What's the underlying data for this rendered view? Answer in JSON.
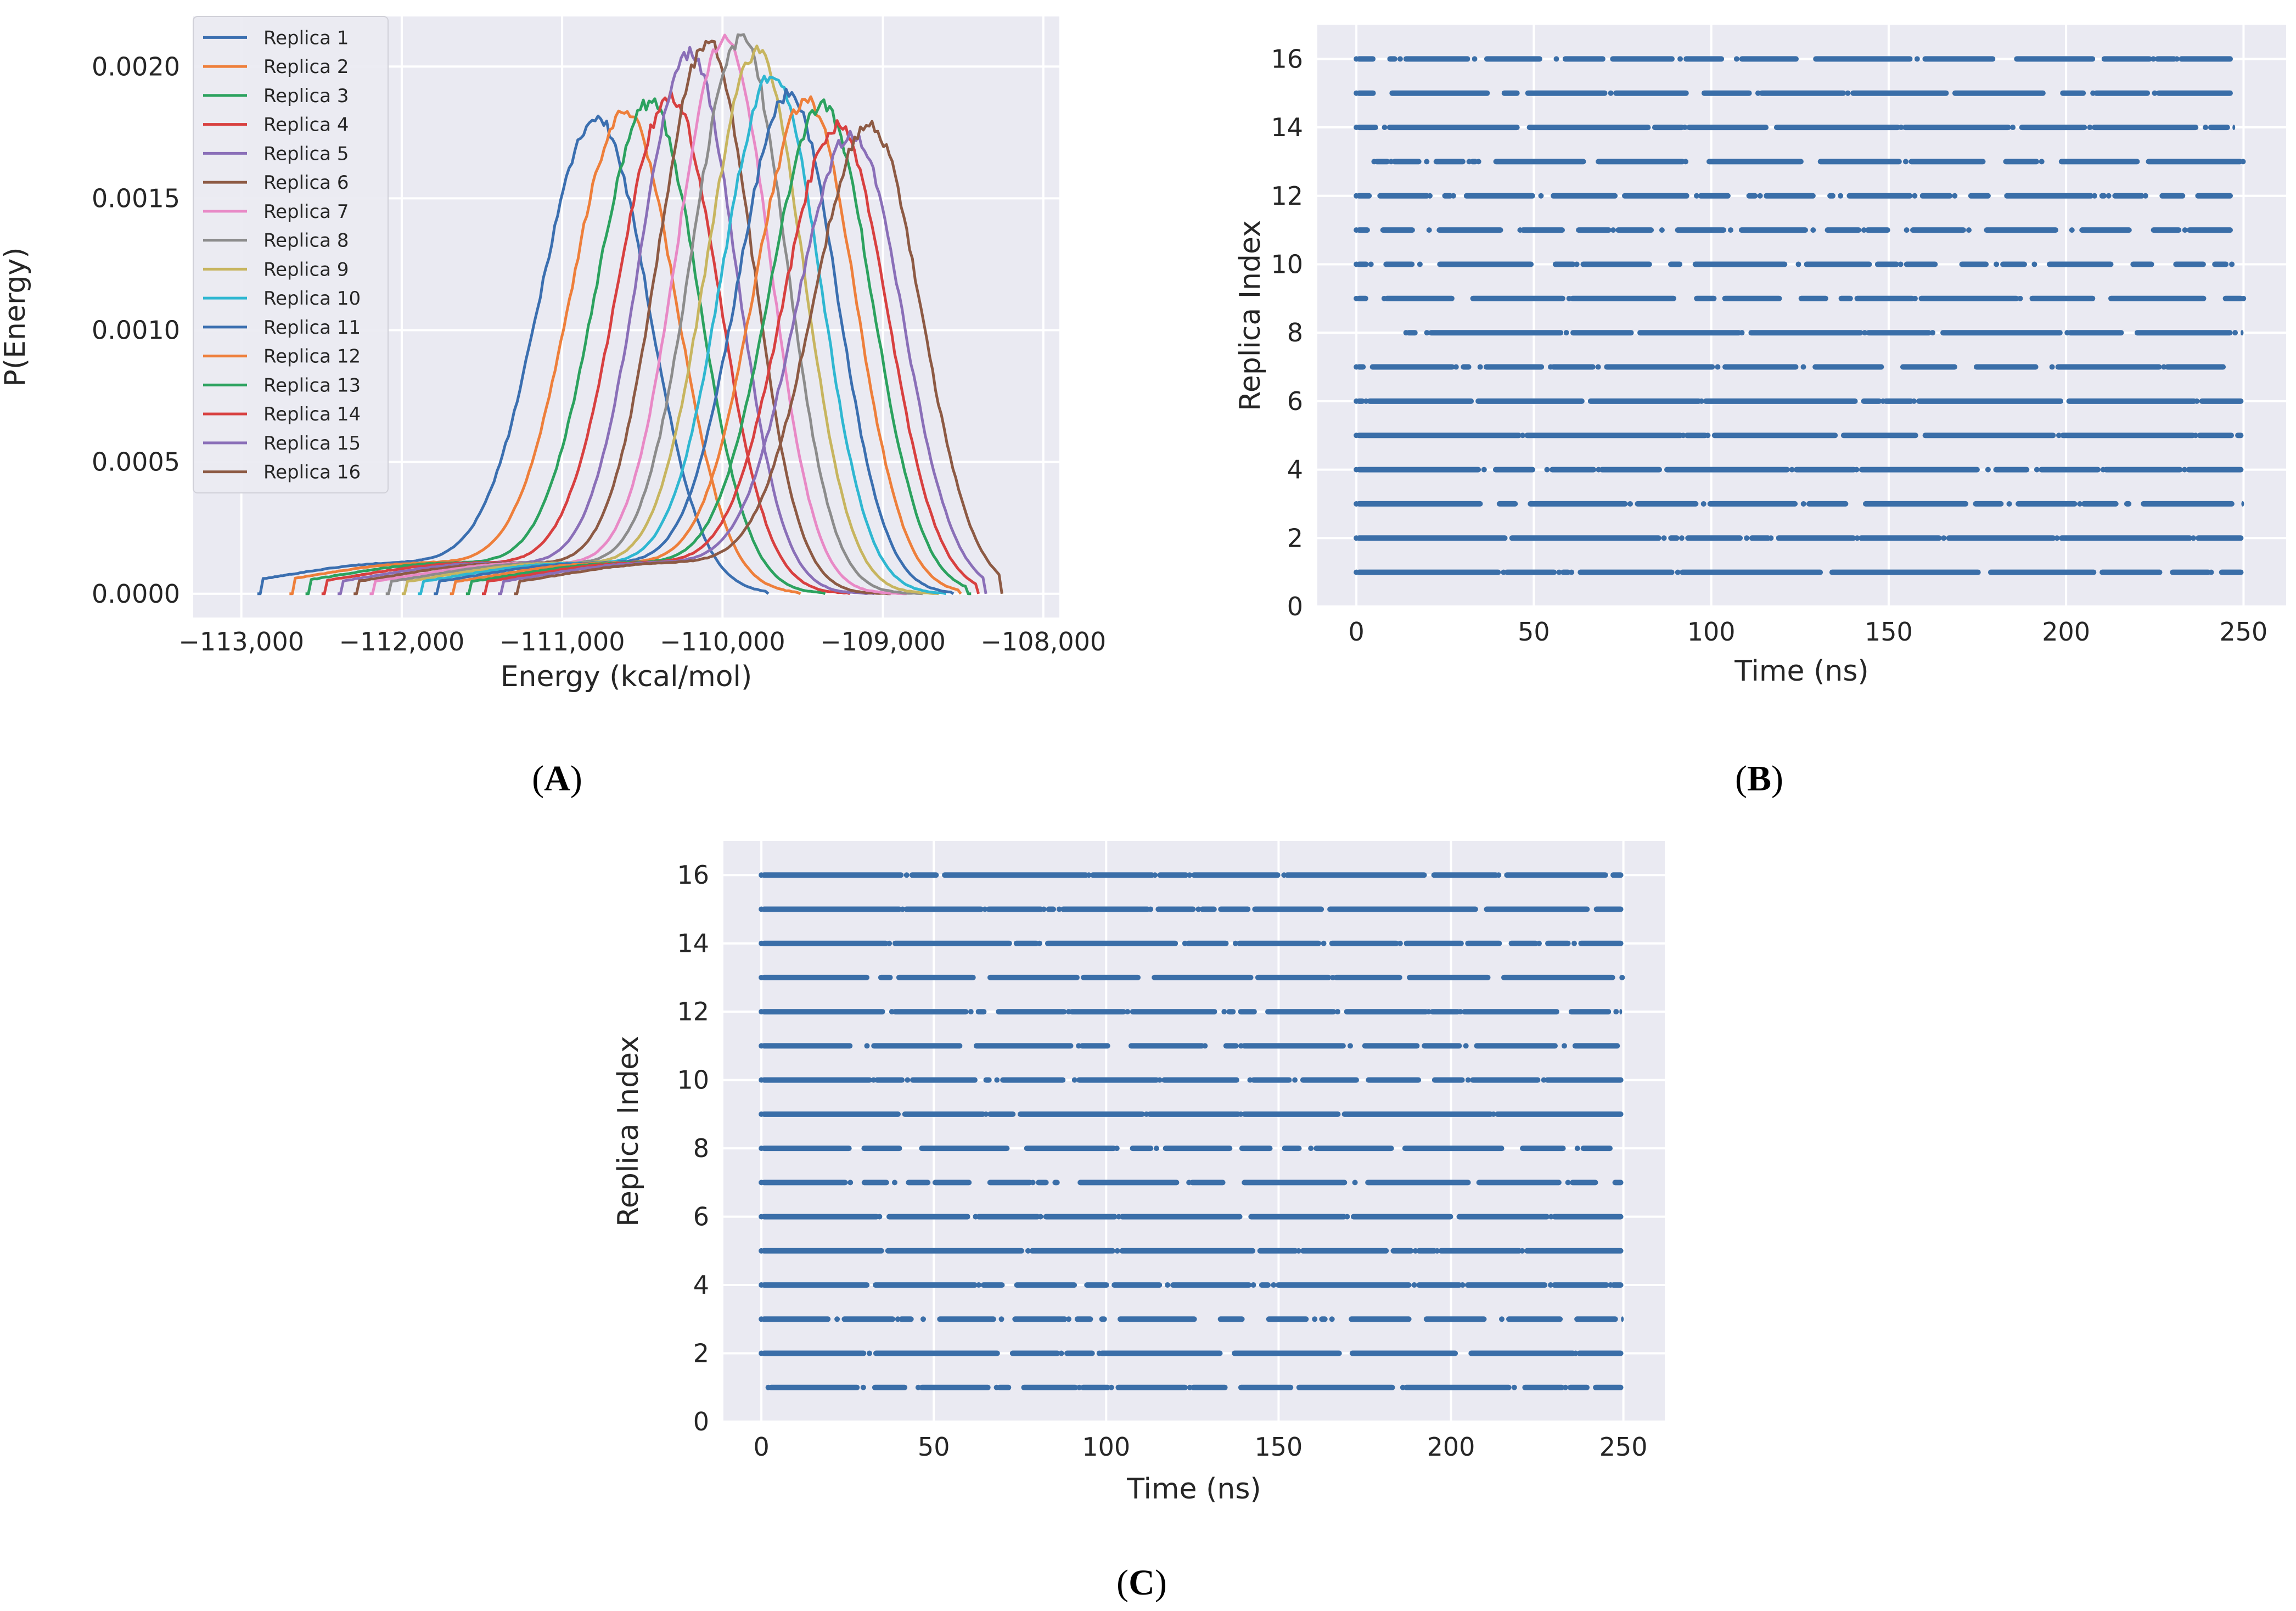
{
  "chart_data": [
    {
      "id": "A",
      "type": "line",
      "panel_label": {
        "open": "(",
        "letter": "A",
        "close": ")"
      },
      "xlabel": "Energy (kcal/mol)",
      "ylabel": "P(Energy)",
      "xlim": [
        -113300,
        -107900
      ],
      "ylim": [
        -9e-05,
        0.00219
      ],
      "xticks": [
        -113000,
        -112000,
        -111000,
        -110000,
        -109000,
        -108000
      ],
      "xtick_labels": [
        "−113,000",
        "−112,000",
        "−111,000",
        "−110,000",
        "−109,000",
        "−108,000"
      ],
      "yticks": [
        0,
        0.0005,
        0.001,
        0.0015,
        0.002
      ],
      "ytick_labels": [
        "0.0000",
        "0.0005",
        "0.0010",
        "0.0015",
        "0.0020"
      ],
      "grid": true,
      "legend_position": "top-left",
      "series": [
        {
          "name": "Replica 1",
          "color": "#3b6fb0",
          "peak_x": -110780,
          "peak_y": 0.00178,
          "sigma": 340,
          "range": [
            -112900,
            -109700
          ]
        },
        {
          "name": "Replica 2",
          "color": "#ee7f3b",
          "peak_x": -110600,
          "peak_y": 0.0018,
          "sigma": 330,
          "range": [
            -112700,
            -109500
          ]
        },
        {
          "name": "Replica 3",
          "color": "#2ca25f",
          "peak_x": -110450,
          "peak_y": 0.00184,
          "sigma": 320,
          "range": [
            -112600,
            -109350
          ]
        },
        {
          "name": "Replica 4",
          "color": "#d84040",
          "peak_x": -110320,
          "peak_y": 0.00186,
          "sigma": 315,
          "range": [
            -112500,
            -109200
          ]
        },
        {
          "name": "Replica 5",
          "color": "#8a6fb8",
          "peak_x": -110200,
          "peak_y": 0.00203,
          "sigma": 300,
          "range": [
            -112400,
            -109050
          ]
        },
        {
          "name": "Replica 6",
          "color": "#8d5a44",
          "peak_x": -110090,
          "peak_y": 0.00207,
          "sigma": 295,
          "range": [
            -112300,
            -108950
          ]
        },
        {
          "name": "Replica 7",
          "color": "#e889c6",
          "peak_x": -109980,
          "peak_y": 0.00209,
          "sigma": 290,
          "range": [
            -112200,
            -108850
          ]
        },
        {
          "name": "Replica 8",
          "color": "#8c8c8c",
          "peak_x": -109880,
          "peak_y": 0.00208,
          "sigma": 295,
          "range": [
            -112100,
            -108750
          ]
        },
        {
          "name": "Replica 9",
          "color": "#c7b55f",
          "peak_x": -109780,
          "peak_y": 0.00203,
          "sigma": 300,
          "range": [
            -112000,
            -108650
          ]
        },
        {
          "name": "Replica 10",
          "color": "#2fb7d1",
          "peak_x": -109680,
          "peak_y": 0.00195,
          "sigma": 305,
          "range": [
            -111900,
            -108600
          ]
        },
        {
          "name": "Replica 11",
          "color": "#3b6fb0",
          "peak_x": -109580,
          "peak_y": 0.00187,
          "sigma": 310,
          "range": [
            -111800,
            -108550
          ]
        },
        {
          "name": "Replica 12",
          "color": "#ee7f3b",
          "peak_x": -109470,
          "peak_y": 0.00185,
          "sigma": 315,
          "range": [
            -111700,
            -108500
          ]
        },
        {
          "name": "Replica 13",
          "color": "#2ca25f",
          "peak_x": -109370,
          "peak_y": 0.00183,
          "sigma": 320,
          "range": [
            -111600,
            -108450
          ]
        },
        {
          "name": "Replica 14",
          "color": "#d84040",
          "peak_x": -109280,
          "peak_y": 0.00175,
          "sigma": 325,
          "range": [
            -111500,
            -108400
          ]
        },
        {
          "name": "Replica 15",
          "color": "#8a6fb8",
          "peak_x": -109190,
          "peak_y": 0.00172,
          "sigma": 330,
          "range": [
            -111400,
            -108350
          ]
        },
        {
          "name": "Replica 16",
          "color": "#8d5a44",
          "peak_x": -109080,
          "peak_y": 0.00176,
          "sigma": 335,
          "range": [
            -111300,
            -108250
          ]
        }
      ]
    },
    {
      "id": "B",
      "type": "scatter",
      "panel_label": {
        "open": "(",
        "letter": "B",
        "close": ")"
      },
      "xlabel": "Time (ns)",
      "ylabel": "Replica Index",
      "xlim": [
        -11,
        262
      ],
      "ylim": [
        0,
        17
      ],
      "xticks": [
        0,
        50,
        100,
        150,
        200,
        250
      ],
      "xtick_labels": [
        "0",
        "50",
        "100",
        "150",
        "200",
        "250"
      ],
      "yticks": [
        0,
        2,
        4,
        6,
        8,
        10,
        12,
        14,
        16
      ],
      "ytick_labels": [
        "0",
        "2",
        "4",
        "6",
        "8",
        "10",
        "12",
        "14",
        "16"
      ],
      "grid": true,
      "marker_color": "#3a6ea8",
      "rows": [
        {
          "index": 1,
          "density": 0.85,
          "start": 0,
          "end": 250
        },
        {
          "index": 2,
          "density": 0.88,
          "start": 0,
          "end": 250
        },
        {
          "index": 3,
          "density": 0.72,
          "start": 0,
          "end": 250
        },
        {
          "index": 4,
          "density": 0.7,
          "start": 0,
          "end": 250
        },
        {
          "index": 5,
          "density": 0.93,
          "start": 0,
          "end": 250
        },
        {
          "index": 6,
          "density": 0.95,
          "start": 0,
          "end": 250
        },
        {
          "index": 7,
          "density": 0.65,
          "start": 0,
          "end": 245
        },
        {
          "index": 8,
          "density": 0.8,
          "start": 14,
          "end": 250
        },
        {
          "index": 9,
          "density": 0.62,
          "start": 0,
          "end": 250
        },
        {
          "index": 10,
          "density": 0.55,
          "start": 0,
          "end": 247
        },
        {
          "index": 11,
          "density": 0.55,
          "start": 0,
          "end": 247
        },
        {
          "index": 12,
          "density": 0.6,
          "start": 0,
          "end": 247
        },
        {
          "index": 13,
          "density": 0.55,
          "start": 5,
          "end": 250
        },
        {
          "index": 14,
          "density": 0.82,
          "start": 0,
          "end": 247
        },
        {
          "index": 15,
          "density": 0.62,
          "start": 0,
          "end": 247
        },
        {
          "index": 16,
          "density": 0.55,
          "start": 0,
          "end": 247
        }
      ]
    },
    {
      "id": "C",
      "type": "scatter",
      "panel_label": {
        "open": "(",
        "letter": "C",
        "close": ")"
      },
      "xlabel": "Time (ns)",
      "ylabel": "Replica Index",
      "xlim": [
        -11,
        262
      ],
      "ylim": [
        0,
        17
      ],
      "xticks": [
        0,
        50,
        100,
        150,
        200,
        250
      ],
      "xtick_labels": [
        "0",
        "50",
        "100",
        "150",
        "200",
        "250"
      ],
      "yticks": [
        0,
        2,
        4,
        6,
        8,
        10,
        12,
        14,
        16
      ],
      "ytick_labels": [
        "0",
        "2",
        "4",
        "6",
        "8",
        "10",
        "12",
        "14",
        "16"
      ],
      "grid": true,
      "marker_color": "#3a6ea8",
      "rows": [
        {
          "index": 1,
          "density": 0.7,
          "start": 2,
          "end": 250
        },
        {
          "index": 2,
          "density": 0.8,
          "start": 0,
          "end": 250
        },
        {
          "index": 3,
          "density": 0.5,
          "start": 0,
          "end": 250
        },
        {
          "index": 4,
          "density": 0.8,
          "start": 0,
          "end": 250
        },
        {
          "index": 5,
          "density": 0.9,
          "start": 0,
          "end": 250
        },
        {
          "index": 6,
          "density": 0.85,
          "start": 0,
          "end": 250
        },
        {
          "index": 7,
          "density": 0.6,
          "start": 0,
          "end": 250
        },
        {
          "index": 8,
          "density": 0.62,
          "start": 0,
          "end": 250
        },
        {
          "index": 9,
          "density": 0.97,
          "start": 0,
          "end": 250
        },
        {
          "index": 10,
          "density": 0.75,
          "start": 0,
          "end": 250
        },
        {
          "index": 11,
          "density": 0.6,
          "start": 0,
          "end": 249
        },
        {
          "index": 12,
          "density": 0.82,
          "start": 0,
          "end": 249
        },
        {
          "index": 13,
          "density": 0.7,
          "start": 0,
          "end": 250
        },
        {
          "index": 14,
          "density": 0.82,
          "start": 0,
          "end": 250
        },
        {
          "index": 15,
          "density": 0.9,
          "start": 0,
          "end": 250
        },
        {
          "index": 16,
          "density": 0.9,
          "start": 0,
          "end": 250
        }
      ]
    }
  ]
}
